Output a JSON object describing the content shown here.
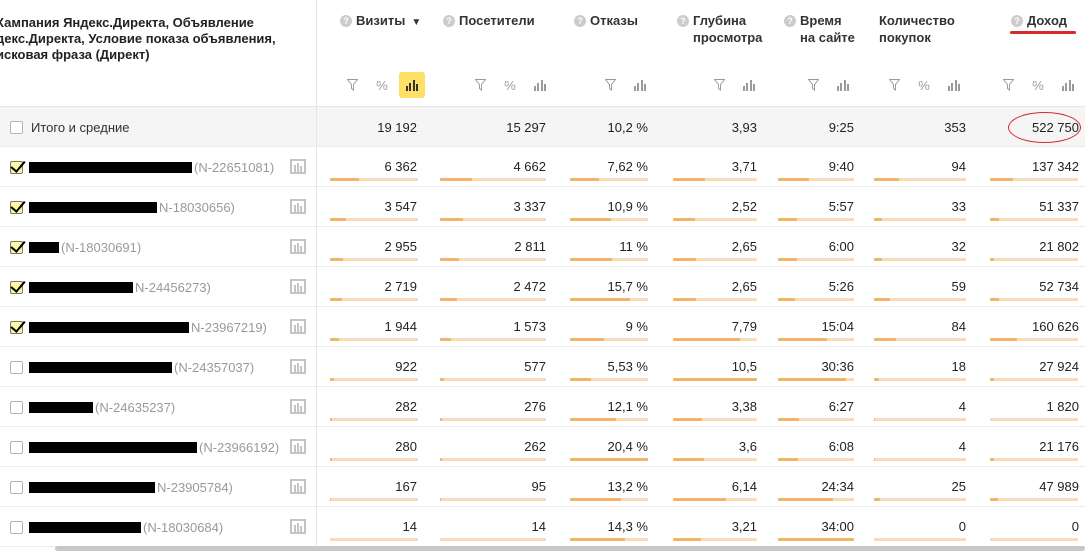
{
  "header": {
    "first_title": "Кампания Яндекс.Директа, Объявление\nдекс.Директа, Условие показа объявления,\nисковая фраза (Директ)",
    "columns": [
      {
        "key": "visits",
        "label": "Визиты",
        "sorted_desc": true
      },
      {
        "key": "visitors",
        "label": "Посетители"
      },
      {
        "key": "bounces",
        "label": "Отказы"
      },
      {
        "key": "depth",
        "label": "Глубина\nпросмотра"
      },
      {
        "key": "time",
        "label": "Время\nна сайте"
      },
      {
        "key": "purchases",
        "label": "Количество\nпокупок"
      },
      {
        "key": "revenue",
        "label": "Доход"
      }
    ],
    "help_glyph": "?",
    "sort_glyph": "▼",
    "percent_glyph": "%"
  },
  "icons": {
    "filter": "filter-icon",
    "percent": "percent-icon",
    "bars": "bar-chart-icon",
    "row_chart": "row-chart-icon"
  },
  "colors": {
    "bar_track": "#f7dcb7",
    "bar_fill": "#f2b36a",
    "active_tool": "#ffe066",
    "annotation_red": "#d52b2b"
  },
  "total": {
    "label": "Итого и средние",
    "values": [
      "19 192",
      "15 297",
      "10,2 %",
      "3,93",
      "9:25",
      "353",
      "522 750"
    ]
  },
  "rows": [
    {
      "checked": true,
      "redact_w": 163,
      "id": "(N-22651081)",
      "values": [
        "6 362",
        "4 662",
        "7,62 %",
        "3,71",
        "9:40",
        "94",
        "137 342"
      ],
      "fills": [
        0.33,
        0.3,
        0.37,
        0.38,
        0.41,
        0.27,
        0.26
      ]
    },
    {
      "checked": true,
      "redact_w": 128,
      "id": "N-18030656)",
      "values": [
        "3 547",
        "3 337",
        "10,9 %",
        "2,52",
        "5:57",
        "33",
        "51 337"
      ],
      "fills": [
        0.18,
        0.22,
        0.53,
        0.26,
        0.25,
        0.09,
        0.1
      ]
    },
    {
      "checked": true,
      "redact_w": 30,
      "id": "(N-18030691)",
      "values": [
        "2 955",
        "2 811",
        "11 %",
        "2,65",
        "6:00",
        "32",
        "21 802"
      ],
      "fills": [
        0.15,
        0.18,
        0.54,
        0.27,
        0.25,
        0.09,
        0.04
      ]
    },
    {
      "checked": true,
      "redact_w": 104,
      "id": "N-24456273)",
      "values": [
        "2 719",
        "2 472",
        "15,7 %",
        "2,65",
        "5:26",
        "59",
        "52 734"
      ],
      "fills": [
        0.14,
        0.16,
        0.77,
        0.27,
        0.23,
        0.17,
        0.1
      ]
    },
    {
      "checked": true,
      "redact_w": 160,
      "id": "N-23967219)",
      "values": [
        "1 944",
        "1 573",
        "9 %",
        "7,79",
        "15:04",
        "84",
        "160 626"
      ],
      "fills": [
        0.1,
        0.1,
        0.44,
        0.8,
        0.64,
        0.24,
        0.31
      ]
    },
    {
      "checked": false,
      "redact_w": 143,
      "id": "(N-24357037)",
      "values": [
        "922",
        "577",
        "5,53 %",
        "10,5",
        "30:36",
        "18",
        "27 924"
      ],
      "fills": [
        0.05,
        0.04,
        0.27,
        1.0,
        0.9,
        0.05,
        0.05
      ]
    },
    {
      "checked": false,
      "redact_w": 64,
      "id": "(N-24635237)",
      "values": [
        "282",
        "276",
        "12,1 %",
        "3,38",
        "6:27",
        "4",
        "1 820"
      ],
      "fills": [
        0.02,
        0.02,
        0.59,
        0.35,
        0.27,
        0.01,
        0.0
      ]
    },
    {
      "checked": false,
      "redact_w": 168,
      "id": "(N-23966192)",
      "values": [
        "280",
        "262",
        "20,4 %",
        "3,6",
        "6:08",
        "4",
        "21 176"
      ],
      "fills": [
        0.02,
        0.02,
        1.0,
        0.37,
        0.26,
        0.01,
        0.04
      ]
    },
    {
      "checked": false,
      "redact_w": 126,
      "id": "N-23905784)",
      "values": [
        "167",
        "95",
        "13,2 %",
        "6,14",
        "24:34",
        "25",
        "47 989"
      ],
      "fills": [
        0.01,
        0.01,
        0.65,
        0.63,
        0.72,
        0.07,
        0.09
      ]
    },
    {
      "checked": false,
      "redact_w": 112,
      "id": "(N-18030684)",
      "values": [
        "14",
        "14",
        "14,3 %",
        "3,21",
        "34:00",
        "0",
        "0"
      ],
      "fills": [
        0.0,
        0.0,
        0.7,
        0.33,
        1.0,
        0.0,
        0.0
      ]
    }
  ]
}
